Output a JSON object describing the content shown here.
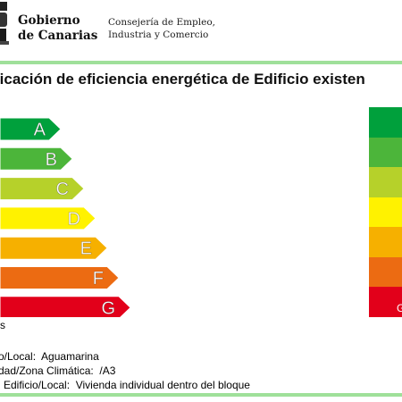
{
  "header": {
    "gov_name_line1": "Gobierno",
    "gov_name_line2": "de Canarias",
    "dept_line1": "Consejería de Empleo,",
    "dept_line2": "Industria y Comercio"
  },
  "title": "ficación de eficiencia energética de Edificio existen",
  "scale": {
    "letters": [
      "A",
      "B",
      "C",
      "D",
      "E",
      "F",
      "G"
    ],
    "colors": [
      "#00a03c",
      "#4cb53a",
      "#b6d12a",
      "#fff200",
      "#f6b000",
      "#ec6b12",
      "#e2001a"
    ]
  },
  "right_scale": {
    "colors": [
      "#00a03c",
      "#4cb53a",
      "#b6d12a",
      "#fff200",
      "#f6b000",
      "#ec6b12",
      "#e2001a"
    ],
    "visible_letter": "G"
  },
  "truncated_label": "s",
  "info": {
    "line1_label": "o/Local:",
    "line1_value": "Aguamarina",
    "line2_label": "dad/Zona Climática:",
    "line2_value": "/A3",
    "line3_label": "l Edificio/Local:",
    "line3_value": "Vivienda individual dentro del bloque"
  }
}
